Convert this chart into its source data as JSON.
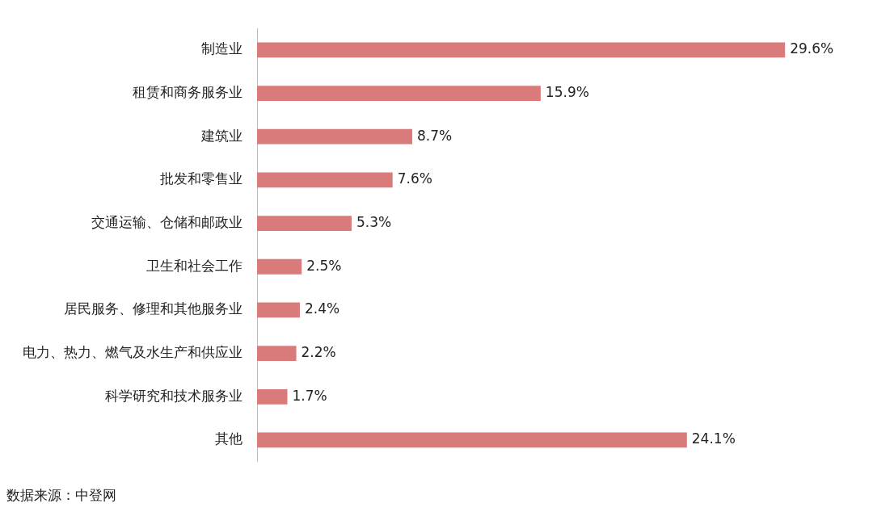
{
  "chart_data": {
    "type": "bar",
    "orientation": "horizontal",
    "categories": [
      "制造业",
      "租赁和商务服务业",
      "建筑业",
      "批发和零售业",
      "交通运输、仓储和邮政业",
      "卫生和社会工作",
      "居民服务、修理和其他服务业",
      "电力、热力、燃气及水生产和供应业",
      "科学研究和技术服务业",
      "其他"
    ],
    "values": [
      29.6,
      15.9,
      8.7,
      7.6,
      5.3,
      2.5,
      2.4,
      2.2,
      1.7,
      24.1
    ],
    "value_labels": [
      "29.6%",
      "15.9%",
      "8.7%",
      "7.6%",
      "5.3%",
      "2.5%",
      "2.4%",
      "2.2%",
      "1.7%",
      "24.1%"
    ],
    "color": "#d97b7b",
    "legend": false,
    "annotations": [
      "数据来源：中登网"
    ]
  }
}
